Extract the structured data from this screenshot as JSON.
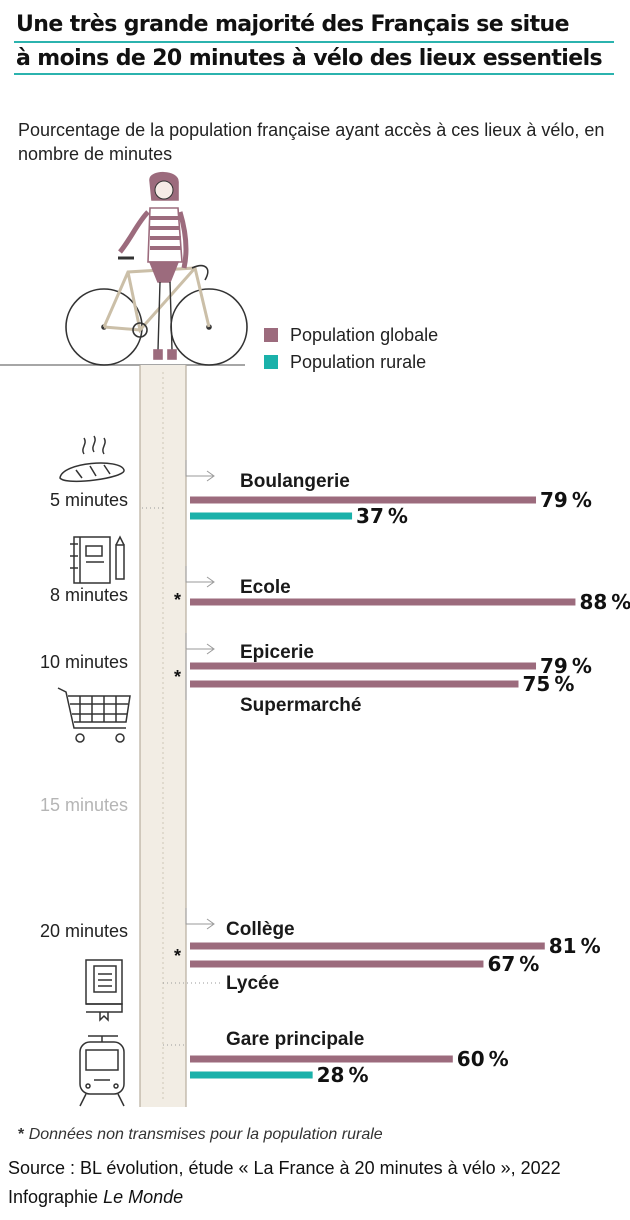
{
  "title_line1": "Une très grande majorité des Français se situe",
  "title_line2": "à moins de 20 minutes à vélo des lieux essentiels",
  "subtitle": "Pourcentage de la population française ayant accès à ces lieux à vélo, en nombre de minutes",
  "footnote_star": "*",
  "footnote_text": "Données non transmises pour la population rurale",
  "source": "Source : BL évolution, étude « La France à 20 minutes à vélo », 2022",
  "credit_prefix": "Infographie",
  "credit_name": "Le Monde",
  "colors": {
    "global": "#9c6b7d",
    "rural": "#1ab1aa",
    "shaft": "#f2ede4",
    "accent": "#2bb3ae"
  },
  "chart_data": {
    "type": "bar",
    "orientation": "horizontal",
    "unit": "%",
    "legend": [
      {
        "name": "Population globale",
        "color": "#9c6b7d"
      },
      {
        "name": "Population rurale",
        "color": "#1ab1aa"
      }
    ],
    "legend_position": "top-right",
    "time_labels": [
      {
        "text": "5 minutes",
        "faded": false
      },
      {
        "text": "8 minutes",
        "faded": false
      },
      {
        "text": "10 minutes",
        "faded": false
      },
      {
        "text": "15 minutes",
        "faded": true
      },
      {
        "text": "20 minutes",
        "faded": false
      }
    ],
    "places": [
      {
        "label": "Boulangerie",
        "minutes": 5,
        "global": 79,
        "rural": 37,
        "rural_missing": false,
        "icon": "bread-icon"
      },
      {
        "label": "Ecole",
        "minutes": 8,
        "global": 88,
        "rural": null,
        "rural_missing": true,
        "icon": "notebook-icon"
      },
      {
        "label": "Epicerie",
        "minutes": 10,
        "global": 79,
        "rural": null,
        "rural_missing": true,
        "icon": "shopping-cart-icon"
      },
      {
        "label": "Supermarché",
        "minutes": 10,
        "global": 75,
        "rural": null,
        "rural_missing": true,
        "icon": "shopping-cart-icon"
      },
      {
        "label": "Collège",
        "minutes": 20,
        "global": 81,
        "rural": null,
        "rural_missing": true,
        "icon": "book-icon"
      },
      {
        "label": "Lycée",
        "minutes": 20,
        "global": 67,
        "rural": null,
        "rural_missing": true,
        "icon": "book-icon"
      },
      {
        "label": "Gare principale",
        "minutes": 20,
        "global": 60,
        "rural": 28,
        "rural_missing": false,
        "icon": "train-icon"
      }
    ]
  }
}
